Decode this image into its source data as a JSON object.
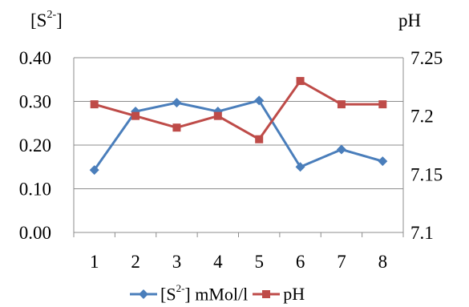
{
  "chart_data": {
    "type": "line",
    "categories": [
      "1",
      "2",
      "3",
      "4",
      "5",
      "6",
      "7",
      "8"
    ],
    "y_left": {
      "label_main": "[S",
      "label_sup": "2-",
      "label_close": "]",
      "range": [
        0,
        0.4
      ],
      "ticks": [
        "0.00",
        "0.10",
        "0.20",
        "0.30",
        "0.40"
      ]
    },
    "y_right": {
      "label": "pH",
      "range": [
        7.1,
        7.25
      ],
      "ticks": [
        "7.1",
        "7.15",
        "7.2",
        "7.25"
      ]
    },
    "series": [
      {
        "legend_main": "[S",
        "legend_sup": "2-",
        "legend_rest": "] mMol/l",
        "axis": "left",
        "color": "#4a7ebb",
        "marker": "diamond",
        "values": [
          0.143,
          0.277,
          0.297,
          0.277,
          0.302,
          0.15,
          0.19,
          0.163
        ]
      },
      {
        "name": "pH",
        "axis": "right",
        "color": "#be4b48",
        "marker": "square",
        "values": [
          7.21,
          7.2,
          7.19,
          7.2,
          7.18,
          7.23,
          7.21,
          7.21
        ]
      }
    ],
    "grid": true,
    "legend_position": "bottom"
  }
}
